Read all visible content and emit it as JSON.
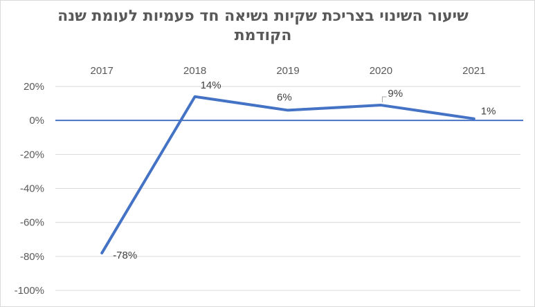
{
  "chart_data": {
    "type": "line",
    "title": "שיעור השינוי בצריכת שקיות נשיאה חד פעמיות לעומת שנה הקודמת",
    "categories": [
      "2017",
      "2018",
      "2019",
      "2020",
      "2021"
    ],
    "series": [
      {
        "values": [
          -78,
          14,
          6,
          9,
          1
        ],
        "labels": [
          "-78%",
          "14%",
          "6%",
          "9%",
          "1%"
        ]
      }
    ],
    "ylim": [
      -100,
      20
    ],
    "yticks": [
      "20%",
      "0%",
      "-20%",
      "-40%",
      "-60%",
      "-80%",
      "-100%"
    ],
    "xaxis_position": "top",
    "grid": true,
    "line_color": "#4472c4",
    "xlabel": "",
    "ylabel": ""
  }
}
